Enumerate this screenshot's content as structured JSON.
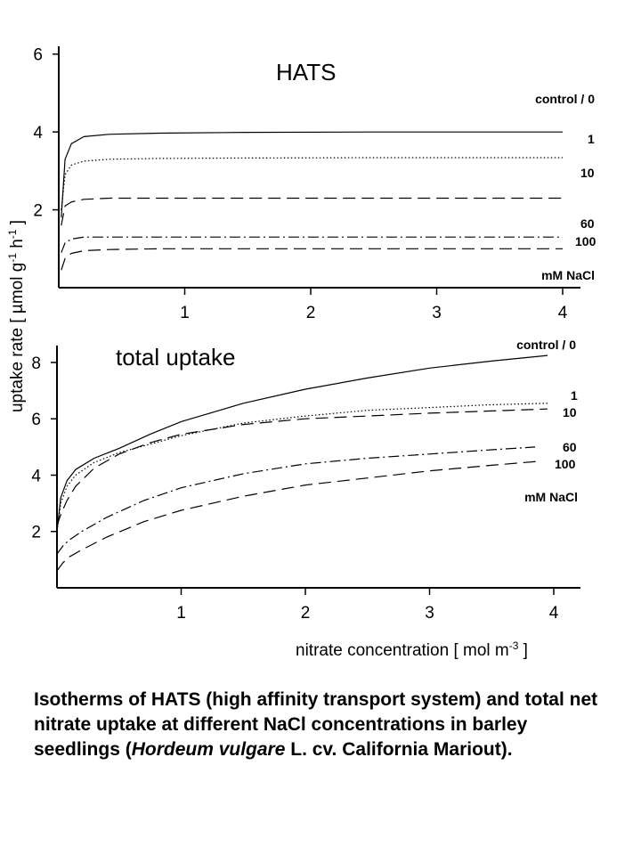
{
  "y_axis_label": {
    "main": "uptake rate [ µmol g",
    "sup1": "-1",
    "mid": " h",
    "sup2": "-1",
    "end": " ]"
  },
  "x_axis_label": {
    "main": "nitrate concentration [ mol m",
    "sup": "-3",
    "end": " ]"
  },
  "caption": {
    "part1": "Isotherms of HATS (high affinity transport system) and total net nitrate uptake at different NaCl concentrations in barley seedlings (",
    "species": "Hordeum vulgare",
    "part2": " L. cv. California Mariout)."
  },
  "chart_data": [
    {
      "type": "line",
      "title": "HATS",
      "xlabel": "nitrate concentration [ mol m-3 ]",
      "ylabel": "uptake rate [ µmol g-1 h-1 ]",
      "xlim": [
        0,
        4.1
      ],
      "ylim": [
        0,
        6.2
      ],
      "xticks": [
        1,
        2,
        3,
        4
      ],
      "yticks": [
        2,
        4,
        6
      ],
      "grid": false,
      "legend_header": "control / 0",
      "legend_footer": "mM NaCl",
      "series": [
        {
          "name": "1",
          "color": "#000000",
          "dash": "solid",
          "x": [
            0.02,
            0.05,
            0.1,
            0.2,
            0.4,
            0.8,
            1.5,
            2.5,
            4.0
          ],
          "y": [
            1.8,
            3.3,
            3.7,
            3.88,
            3.94,
            3.97,
            3.99,
            4.0,
            4.0
          ]
        },
        {
          "name": "10",
          "color": "#000000",
          "dash": "dotted",
          "x": [
            0.02,
            0.05,
            0.1,
            0.2,
            0.4,
            0.8,
            1.5,
            2.5,
            4.0
          ],
          "y": [
            2.0,
            2.9,
            3.15,
            3.25,
            3.3,
            3.32,
            3.33,
            3.34,
            3.34
          ]
        },
        {
          "name": "",
          "color": "#000000",
          "dash": "longdash",
          "x": [
            0.02,
            0.05,
            0.1,
            0.2,
            0.4,
            0.8,
            1.5,
            2.5,
            4.0
          ],
          "y": [
            1.6,
            2.1,
            2.2,
            2.27,
            2.3,
            2.3,
            2.3,
            2.3,
            2.3
          ]
        },
        {
          "name": "60",
          "color": "#000000",
          "dash": "dashdot",
          "x": [
            0.02,
            0.05,
            0.1,
            0.2,
            0.4,
            0.8,
            1.5,
            2.5,
            4.0
          ],
          "y": [
            0.9,
            1.15,
            1.25,
            1.3,
            1.3,
            1.3,
            1.3,
            1.3,
            1.3
          ]
        },
        {
          "name": "100",
          "color": "#000000",
          "dash": "longdash",
          "x": [
            0.02,
            0.05,
            0.1,
            0.2,
            0.4,
            0.8,
            1.5,
            2.5,
            4.0
          ],
          "y": [
            0.45,
            0.75,
            0.88,
            0.95,
            0.98,
            1.0,
            1.0,
            1.0,
            1.0
          ]
        }
      ]
    },
    {
      "type": "line",
      "title": "total uptake",
      "xlabel": "nitrate concentration [ mol m-3 ]",
      "ylabel": "uptake rate [ µmol g-1 h-1 ]",
      "xlim": [
        0,
        4.2
      ],
      "ylim": [
        0,
        8.6
      ],
      "xticks": [
        1,
        2,
        3,
        4
      ],
      "yticks": [
        2,
        4,
        6,
        8
      ],
      "grid": false,
      "legend_header": "control / 0",
      "legend_footer": "mM NaCl",
      "series": [
        {
          "name": "",
          "color": "#000000",
          "dash": "solid",
          "x": [
            0.0,
            0.03,
            0.08,
            0.15,
            0.3,
            0.5,
            0.75,
            1.0,
            1.5,
            2.0,
            2.5,
            3.0,
            3.5,
            3.95
          ],
          "y": [
            2.0,
            3.2,
            3.8,
            4.2,
            4.6,
            4.95,
            5.45,
            5.9,
            6.55,
            7.05,
            7.45,
            7.8,
            8.05,
            8.25
          ]
        },
        {
          "name": "1",
          "color": "#000000",
          "dash": "dotted",
          "x": [
            0.0,
            0.03,
            0.08,
            0.15,
            0.3,
            0.5,
            0.75,
            1.0,
            1.5,
            2.0,
            2.5,
            3.0,
            3.5,
            3.95
          ],
          "y": [
            2.0,
            3.0,
            3.6,
            4.0,
            4.45,
            4.8,
            5.1,
            5.4,
            5.85,
            6.1,
            6.3,
            6.4,
            6.5,
            6.55
          ]
        },
        {
          "name": "10",
          "color": "#000000",
          "dash": "longdash",
          "x": [
            0.0,
            0.03,
            0.08,
            0.15,
            0.3,
            0.5,
            0.75,
            1.0,
            1.5,
            2.0,
            2.5,
            3.0,
            3.5,
            3.95
          ],
          "y": [
            2.2,
            2.6,
            3.1,
            3.6,
            4.25,
            4.75,
            5.15,
            5.45,
            5.8,
            6.0,
            6.1,
            6.2,
            6.28,
            6.35
          ]
        },
        {
          "name": "60",
          "color": "#000000",
          "dash": "dashdot",
          "x": [
            0.0,
            0.05,
            0.1,
            0.2,
            0.4,
            0.7,
            1.0,
            1.5,
            2.0,
            2.5,
            3.0,
            3.5,
            3.85
          ],
          "y": [
            1.2,
            1.5,
            1.7,
            2.0,
            2.5,
            3.1,
            3.55,
            4.05,
            4.4,
            4.6,
            4.75,
            4.9,
            5.0
          ]
        },
        {
          "name": "100",
          "color": "#000000",
          "dash": "longdash",
          "x": [
            0.0,
            0.05,
            0.1,
            0.2,
            0.4,
            0.7,
            1.0,
            1.5,
            2.0,
            2.5,
            3.0,
            3.5,
            3.9
          ],
          "y": [
            0.6,
            0.9,
            1.1,
            1.35,
            1.8,
            2.35,
            2.75,
            3.25,
            3.65,
            3.9,
            4.15,
            4.35,
            4.5
          ]
        }
      ]
    }
  ]
}
